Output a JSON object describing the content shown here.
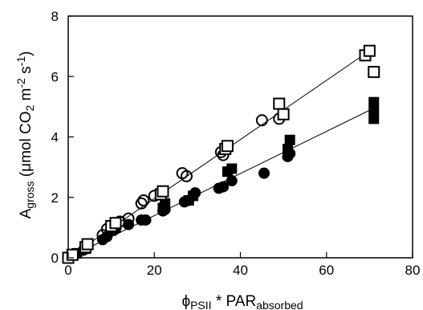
{
  "chart_data": {
    "type": "scatter",
    "title": "",
    "xlabel": {
      "phi": "ϕ",
      "phi_sub": "PSII",
      "mid": " * PAR",
      "par_sub": "absorbed"
    },
    "ylabel": {
      "a": "A",
      "a_sub": "gross",
      "part1": " (μmol CO",
      "co2_sub": "2",
      "part2": " m",
      "exp1": "-2",
      "part3": " s",
      "exp2": "-1",
      "part4": ")"
    },
    "xlim": [
      0,
      80
    ],
    "ylim": [
      0,
      8
    ],
    "xticks": [
      0,
      20,
      40,
      60,
      80
    ],
    "yticks": [
      0,
      2,
      4,
      6,
      8
    ],
    "grid": false,
    "legend": "none",
    "series": [
      {
        "marker": "open-square",
        "points": [
          [
            0,
            0
          ],
          [
            1,
            0.1
          ],
          [
            4,
            0.35
          ],
          [
            4.5,
            0.45
          ],
          [
            10,
            1.05
          ],
          [
            11,
            1.15
          ],
          [
            21.5,
            2.1
          ],
          [
            22,
            2.2
          ],
          [
            36.5,
            3.6
          ],
          [
            37,
            3.7
          ],
          [
            49,
            5.1
          ],
          [
            50,
            4.75
          ],
          [
            69,
            6.7
          ],
          [
            70,
            6.85
          ],
          [
            71,
            6.15
          ]
        ]
      },
      {
        "marker": "open-circle",
        "points": [
          [
            4,
            0.4
          ],
          [
            8,
            0.75
          ],
          [
            9,
            0.95
          ],
          [
            12,
            1.2
          ],
          [
            14,
            1.3
          ],
          [
            17,
            1.8
          ],
          [
            17.5,
            1.9
          ],
          [
            20,
            2.05
          ],
          [
            26.5,
            2.8
          ],
          [
            27.5,
            2.7
          ],
          [
            35.5,
            3.5
          ],
          [
            36,
            3.4
          ],
          [
            45,
            4.55
          ],
          [
            49,
            4.6
          ]
        ]
      },
      {
        "marker": "filled-square",
        "points": [
          [
            2,
            0.15
          ],
          [
            4,
            0.3
          ],
          [
            10,
            0.9
          ],
          [
            11,
            1.0
          ],
          [
            22,
            1.65
          ],
          [
            22.5,
            1.8
          ],
          [
            28,
            1.9
          ],
          [
            29,
            2.05
          ],
          [
            37,
            2.85
          ],
          [
            38,
            2.95
          ],
          [
            51,
            3.6
          ],
          [
            51.5,
            3.9
          ],
          [
            71,
            5.15
          ],
          [
            71,
            4.85
          ],
          [
            71,
            4.6
          ]
        ]
      },
      {
        "marker": "filled-circle",
        "points": [
          [
            3.5,
            0.25
          ],
          [
            8,
            0.6
          ],
          [
            9,
            0.7
          ],
          [
            11,
            0.95
          ],
          [
            14,
            1.1
          ],
          [
            17,
            1.25
          ],
          [
            18,
            1.25
          ],
          [
            22,
            1.55
          ],
          [
            22.5,
            1.6
          ],
          [
            27,
            1.85
          ],
          [
            28,
            1.9
          ],
          [
            29.5,
            2.15
          ],
          [
            35,
            2.3
          ],
          [
            36,
            2.35
          ],
          [
            38,
            2.55
          ],
          [
            45.5,
            2.8
          ],
          [
            51,
            3.35
          ],
          [
            51.5,
            3.45
          ]
        ]
      }
    ],
    "fit_lines": [
      {
        "x": [
          0,
          70
        ],
        "y": [
          0,
          6.85
        ]
      },
      {
        "x": [
          0,
          71
        ],
        "y": [
          0,
          4.95
        ]
      }
    ]
  }
}
